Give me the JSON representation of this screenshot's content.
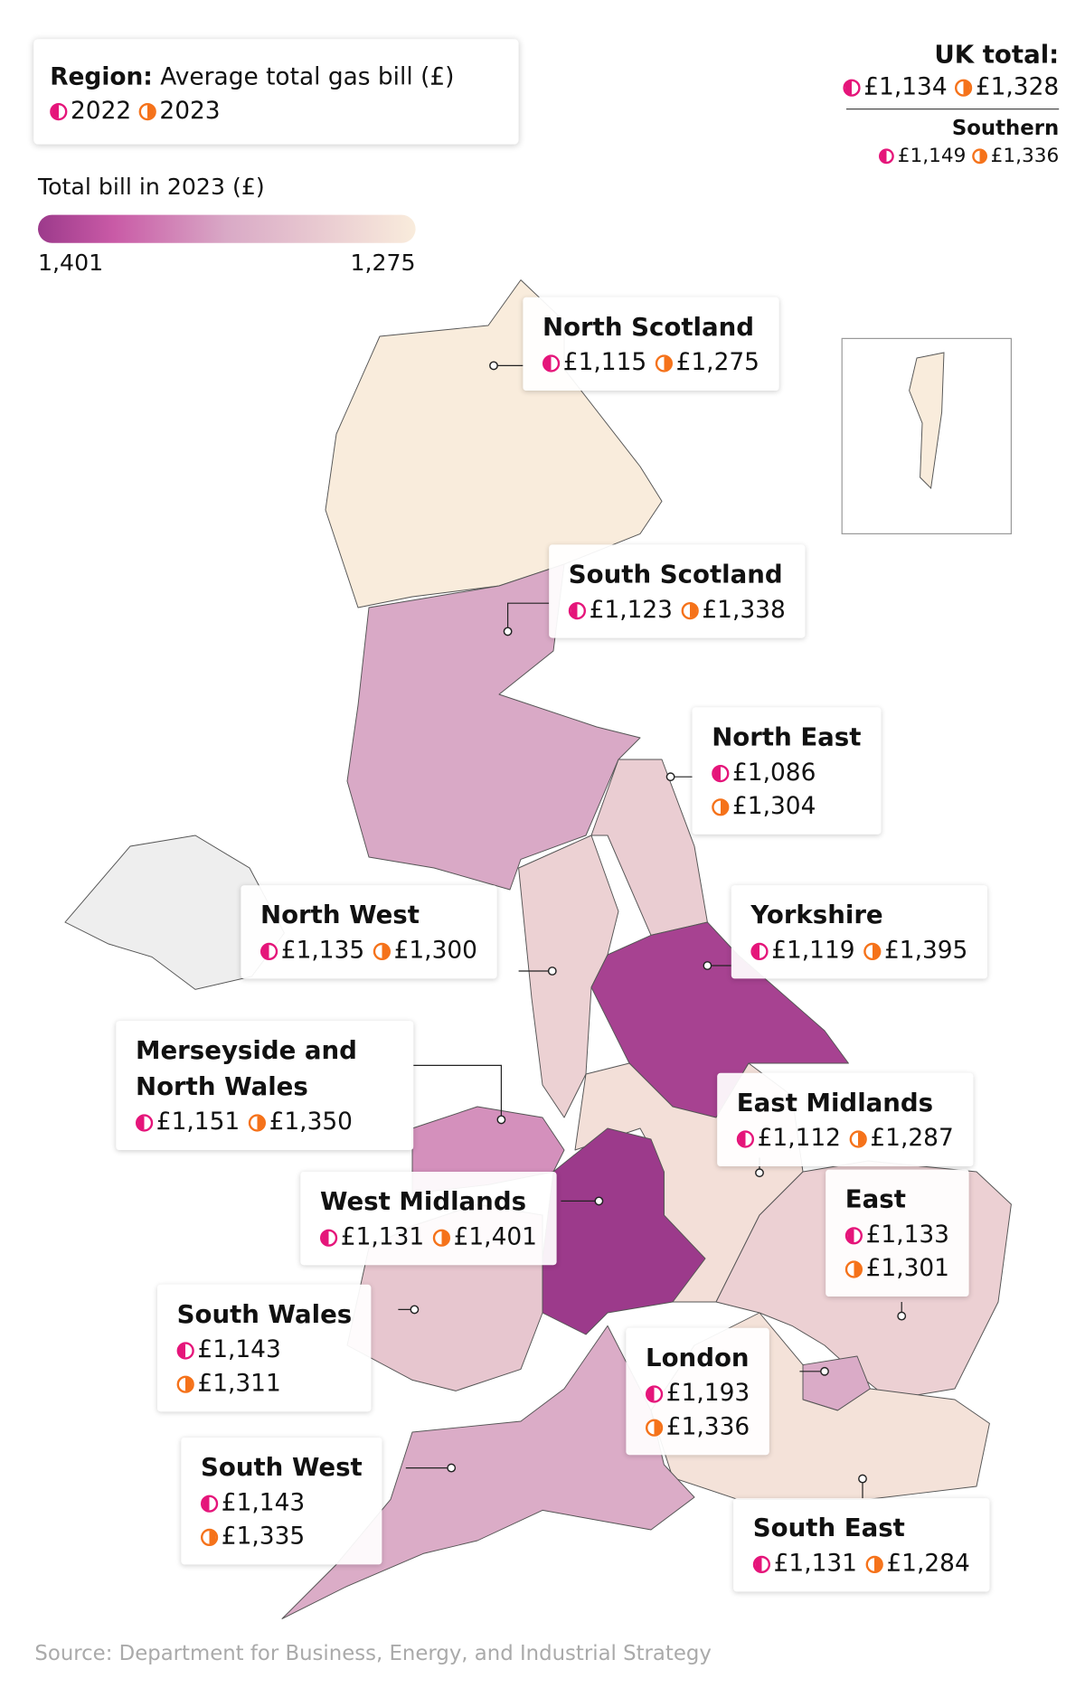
{
  "legend": {
    "title_key": "Region:",
    "title_text": "Average total gas bill (£)",
    "year_2022": "2022",
    "year_2023": "2023",
    "scale_title": "Total bill in 2023 (£)",
    "scale": [
      {
        "value": 1401,
        "label": "1,401"
      },
      {
        "value": 1275,
        "label": "1,275"
      }
    ]
  },
  "uk_total": {
    "title": "UK total:",
    "bill_2022": "£1,134",
    "bill_2023": "£1,328"
  },
  "southern": {
    "title": "Southern",
    "bill_2022": "£1,149",
    "bill_2023": "£1,336"
  },
  "regions": [
    {
      "name": "North Scotland",
      "bill_2022": {
        "value": 1115,
        "label": "£1,115"
      },
      "bill_2023": {
        "value": 1275,
        "label": "£1,275"
      }
    },
    {
      "name": "South Scotland",
      "bill_2022": {
        "value": 1123,
        "label": "£1,123"
      },
      "bill_2023": {
        "value": 1338,
        "label": "£1,338"
      }
    },
    {
      "name": "North East",
      "bill_2022": {
        "value": 1086,
        "label": "£1,086"
      },
      "bill_2023": {
        "value": 1304,
        "label": "£1,304"
      }
    },
    {
      "name": "North West",
      "bill_2022": {
        "value": 1135,
        "label": "£1,135"
      },
      "bill_2023": {
        "value": 1300,
        "label": "£1,300"
      }
    },
    {
      "name": "Yorkshire",
      "bill_2022": {
        "value": 1119,
        "label": "£1,119"
      },
      "bill_2023": {
        "value": 1395,
        "label": "£1,395"
      }
    },
    {
      "name": "Merseyside and North Wales",
      "bill_2022": {
        "value": 1151,
        "label": "£1,151"
      },
      "bill_2023": {
        "value": 1350,
        "label": "£1,350"
      }
    },
    {
      "name": "East Midlands",
      "bill_2022": {
        "value": 1112,
        "label": "£1,112"
      },
      "bill_2023": {
        "value": 1287,
        "label": "£1,287"
      }
    },
    {
      "name": "West Midlands",
      "bill_2022": {
        "value": 1131,
        "label": "£1,131"
      },
      "bill_2023": {
        "value": 1401,
        "label": "£1,401"
      }
    },
    {
      "name": "East",
      "bill_2022": {
        "value": 1133,
        "label": "£1,133"
      },
      "bill_2023": {
        "value": 1301,
        "label": "£1,301"
      }
    },
    {
      "name": "London",
      "bill_2022": {
        "value": 1193,
        "label": "£1,193"
      },
      "bill_2023": {
        "value": 1336,
        "label": "£1,336"
      }
    },
    {
      "name": "South Wales",
      "bill_2022": {
        "value": 1143,
        "label": "£1,143"
      },
      "bill_2023": {
        "value": 1311,
        "label": "£1,311"
      }
    },
    {
      "name": "South East",
      "bill_2022": {
        "value": 1131,
        "label": "£1,131"
      },
      "bill_2023": {
        "value": 1284,
        "label": "£1,284"
      }
    },
    {
      "name": "South West",
      "bill_2022": {
        "value": 1143,
        "label": "£1,143"
      },
      "bill_2023": {
        "value": 1335,
        "label": "£1,335"
      }
    }
  ],
  "source": "Source: Department for Business, Energy, and Industrial Strategy"
}
